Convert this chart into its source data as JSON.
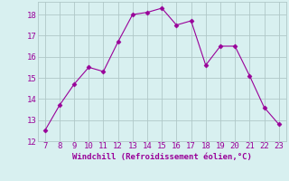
{
  "x": [
    7,
    8,
    9,
    10,
    11,
    12,
    13,
    14,
    15,
    16,
    17,
    18,
    19,
    20,
    21,
    22,
    23
  ],
  "y": [
    12.5,
    13.7,
    14.7,
    15.5,
    15.3,
    16.7,
    18.0,
    18.1,
    18.3,
    17.5,
    17.7,
    15.6,
    16.5,
    16.5,
    15.1,
    13.6,
    12.8
  ],
  "line_color": "#990099",
  "marker": "D",
  "marker_size": 2.5,
  "bg_color": "#d8f0f0",
  "grid_color": "#b0c8c8",
  "xlabel": "Windchill (Refroidissement éolien,°C)",
  "xlabel_color": "#990099",
  "tick_color": "#990099",
  "xlim": [
    6.5,
    23.5
  ],
  "ylim": [
    12,
    18.6
  ],
  "yticks": [
    12,
    13,
    14,
    15,
    16,
    17,
    18
  ],
  "xticks": [
    7,
    8,
    9,
    10,
    11,
    12,
    13,
    14,
    15,
    16,
    17,
    18,
    19,
    20,
    21,
    22,
    23
  ],
  "font_size": 6.5
}
